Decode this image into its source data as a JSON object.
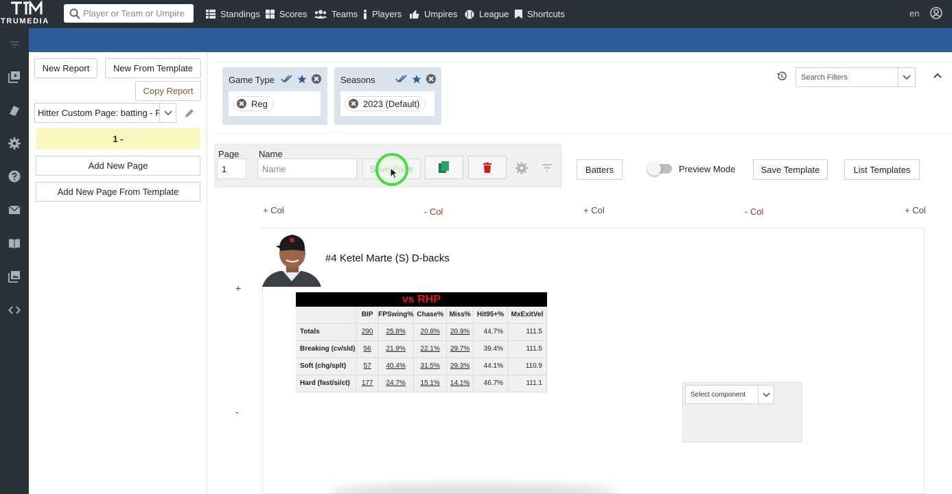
{
  "header": {
    "logo_text": "TRUMEDIA",
    "search_placeholder": "Player or Team or Umpire",
    "nav": [
      "Standings",
      "Scores",
      "Teams",
      "Players",
      "Umpires",
      "League",
      "Shortcuts"
    ],
    "language": "en"
  },
  "left": {
    "new_report": "New Report",
    "new_from_template": "New From Template",
    "copy_report": "Copy Report",
    "report_name": "Hitter Custom Page: batting - P...",
    "current_page": "1 -",
    "add_new_page": "Add New Page",
    "add_new_page_from_template": "Add New Page From Template"
  },
  "filters": {
    "cards": [
      {
        "title": "Game Type",
        "chip": "Reg"
      },
      {
        "title": "Seasons",
        "chip": "2023 (Default)"
      }
    ],
    "search_placeholder": "Search Filters"
  },
  "page_editor": {
    "page_label": "Page",
    "page_value": "1",
    "name_label": "Name",
    "name_placeholder": "Name",
    "save_page": "Save Page",
    "batters": "Batters",
    "preview_mode": "Preview Mode",
    "save_template": "Save Template",
    "list_templates": "List Templates"
  },
  "columns": {
    "add": "+ Col",
    "remove": "- Col",
    "row_add": "+",
    "row_remove": "-"
  },
  "player": {
    "title": "#4 Ketel Marte (S) D-backs"
  },
  "stat_table": {
    "title": "vs RHP",
    "columns": [
      "",
      "BIP",
      "FPSwing%",
      "Chase%",
      "Miss%",
      "Hit95+%",
      "MxExitVel"
    ],
    "rows": [
      [
        "Totals",
        "290",
        "25.8%",
        "20.8%",
        "20.9%",
        "44.7%",
        "111.5"
      ],
      [
        "Breaking (cv/sld)",
        "56",
        "21.9%",
        "22.1%",
        "29.7%",
        "39.4%",
        "111.5"
      ],
      [
        "Soft (chg/splt)",
        "57",
        "40.4%",
        "31.5%",
        "29.3%",
        "44.1%",
        "110.9"
      ],
      [
        "Hard (fast/si/ct)",
        "177",
        "24.7%",
        "15.1%",
        "14.1%",
        "46.7%",
        "111.1"
      ]
    ]
  },
  "component_select": {
    "placeholder": "Select component"
  },
  "colors": {
    "topbar": "#2b3138",
    "band": "#2c5c99",
    "filter_card": "#dbe3ed",
    "page_strip": "#fbf7c0",
    "delete_red": "#d11a1a",
    "copy_green": "#1f7a4a",
    "stat_title_red": "#e11b1b"
  }
}
